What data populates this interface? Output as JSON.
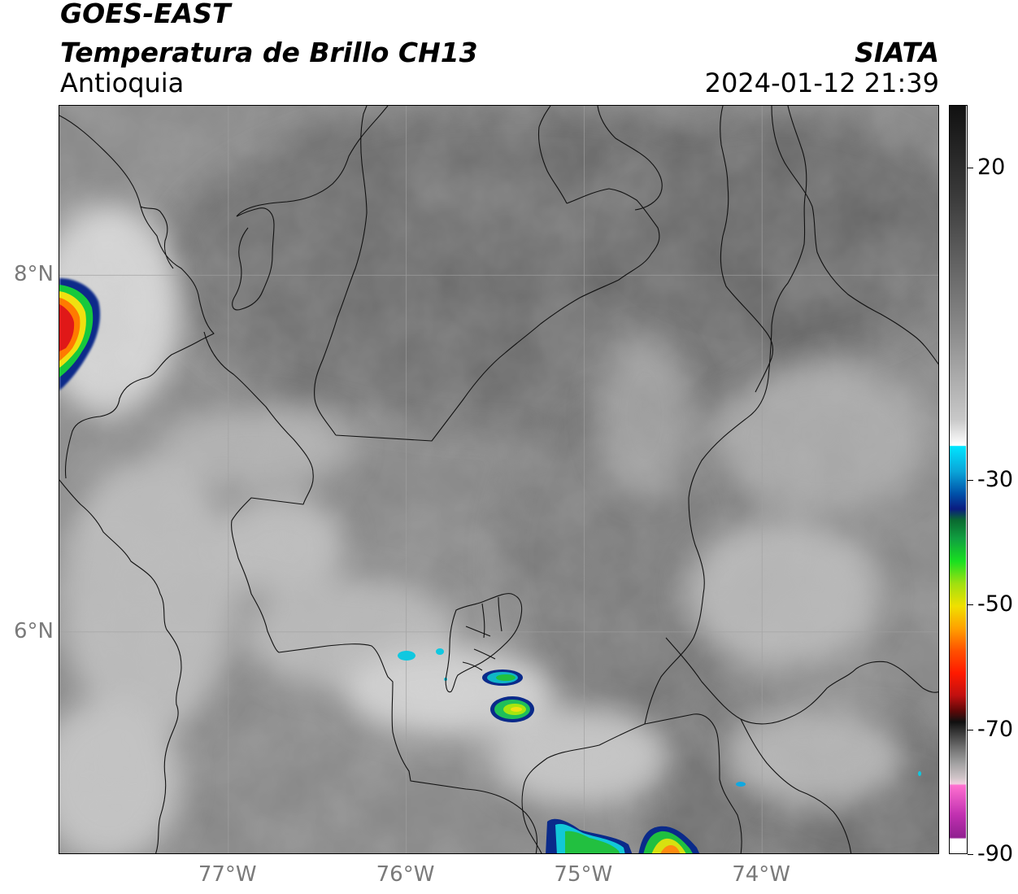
{
  "header": {
    "satellite": "GOES-EAST",
    "variable": "Temperatura de Brillo CH13",
    "organization": "SIATA",
    "region": "Antioquia",
    "datetime": "2024-01-12 21:39"
  },
  "map": {
    "lon_range": [
      -77.95,
      -73.0
    ],
    "lat_range": [
      4.75,
      8.95
    ],
    "lon_ticks": [
      -77,
      -76,
      -75,
      -74
    ],
    "lat_ticks": [
      8,
      6
    ],
    "lon_tick_labels": [
      "77°W",
      "76°W",
      "75°W",
      "74°W"
    ],
    "lat_tick_labels": [
      "8°N",
      "6°N"
    ],
    "background_gray": "#8a8a8a",
    "cold_cloud_cells": [
      {
        "lon": -77.9,
        "lat": 7.85,
        "min_temp": -65
      },
      {
        "lon": -75.35,
        "lat": 5.6,
        "min_temp": -50
      },
      {
        "lon": -75.45,
        "lat": 5.95,
        "min_temp": -40
      },
      {
        "lon": -75.95,
        "lat": 6.15,
        "min_temp": -25
      },
      {
        "lon": -74.55,
        "lat": 4.8,
        "min_temp": -60
      },
      {
        "lon": -74.98,
        "lat": 4.8,
        "min_temp": -50
      }
    ]
  },
  "colorbar": {
    "range": [
      -90,
      30
    ],
    "tick_values": [
      20,
      -30,
      -50,
      -70,
      -90
    ],
    "tick_labels": [
      "20",
      "-30",
      "-50",
      "-70",
      "-90"
    ]
  }
}
